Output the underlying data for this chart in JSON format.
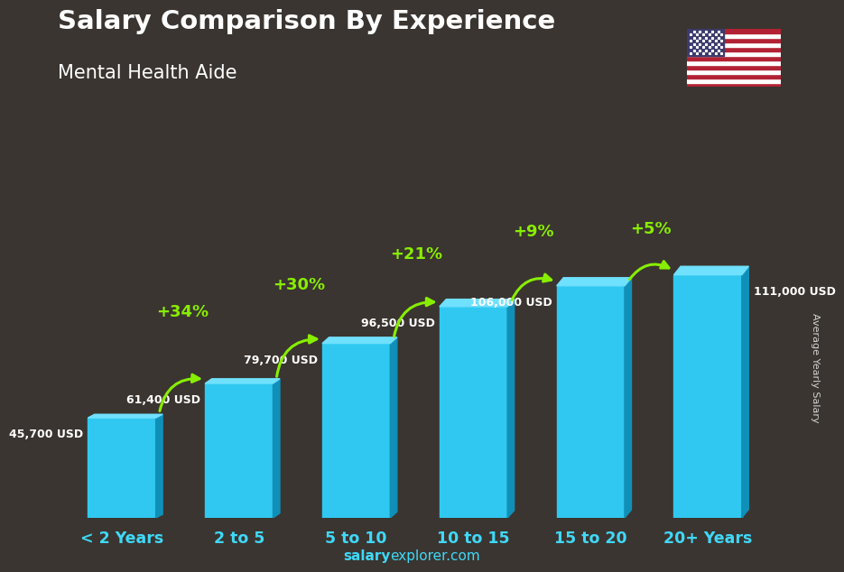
{
  "title": "Salary Comparison By Experience",
  "subtitle": "Mental Health Aide",
  "categories": [
    "< 2 Years",
    "2 to 5",
    "5 to 10",
    "10 to 15",
    "15 to 20",
    "20+ Years"
  ],
  "values": [
    45700,
    61400,
    79700,
    96500,
    106000,
    111000
  ],
  "labels": [
    "45,700 USD",
    "61,400 USD",
    "79,700 USD",
    "96,500 USD",
    "106,000 USD",
    "111,000 USD"
  ],
  "pct_changes": [
    "+34%",
    "+30%",
    "+21%",
    "+9%",
    "+5%"
  ],
  "bar_color": "#30c8f0",
  "bar_color_right": "#1090b8",
  "bar_color_top": "#70e0ff",
  "background_color": "#3a3530",
  "text_color_white": "#ffffff",
  "text_color_cyan": "#40d8f8",
  "text_color_green": "#88ee00",
  "ylabel": "Average Yearly Salary",
  "footer_bold": "salary",
  "footer_rest": "explorer.com",
  "ylim_max": 140000,
  "bar_width": 0.58
}
